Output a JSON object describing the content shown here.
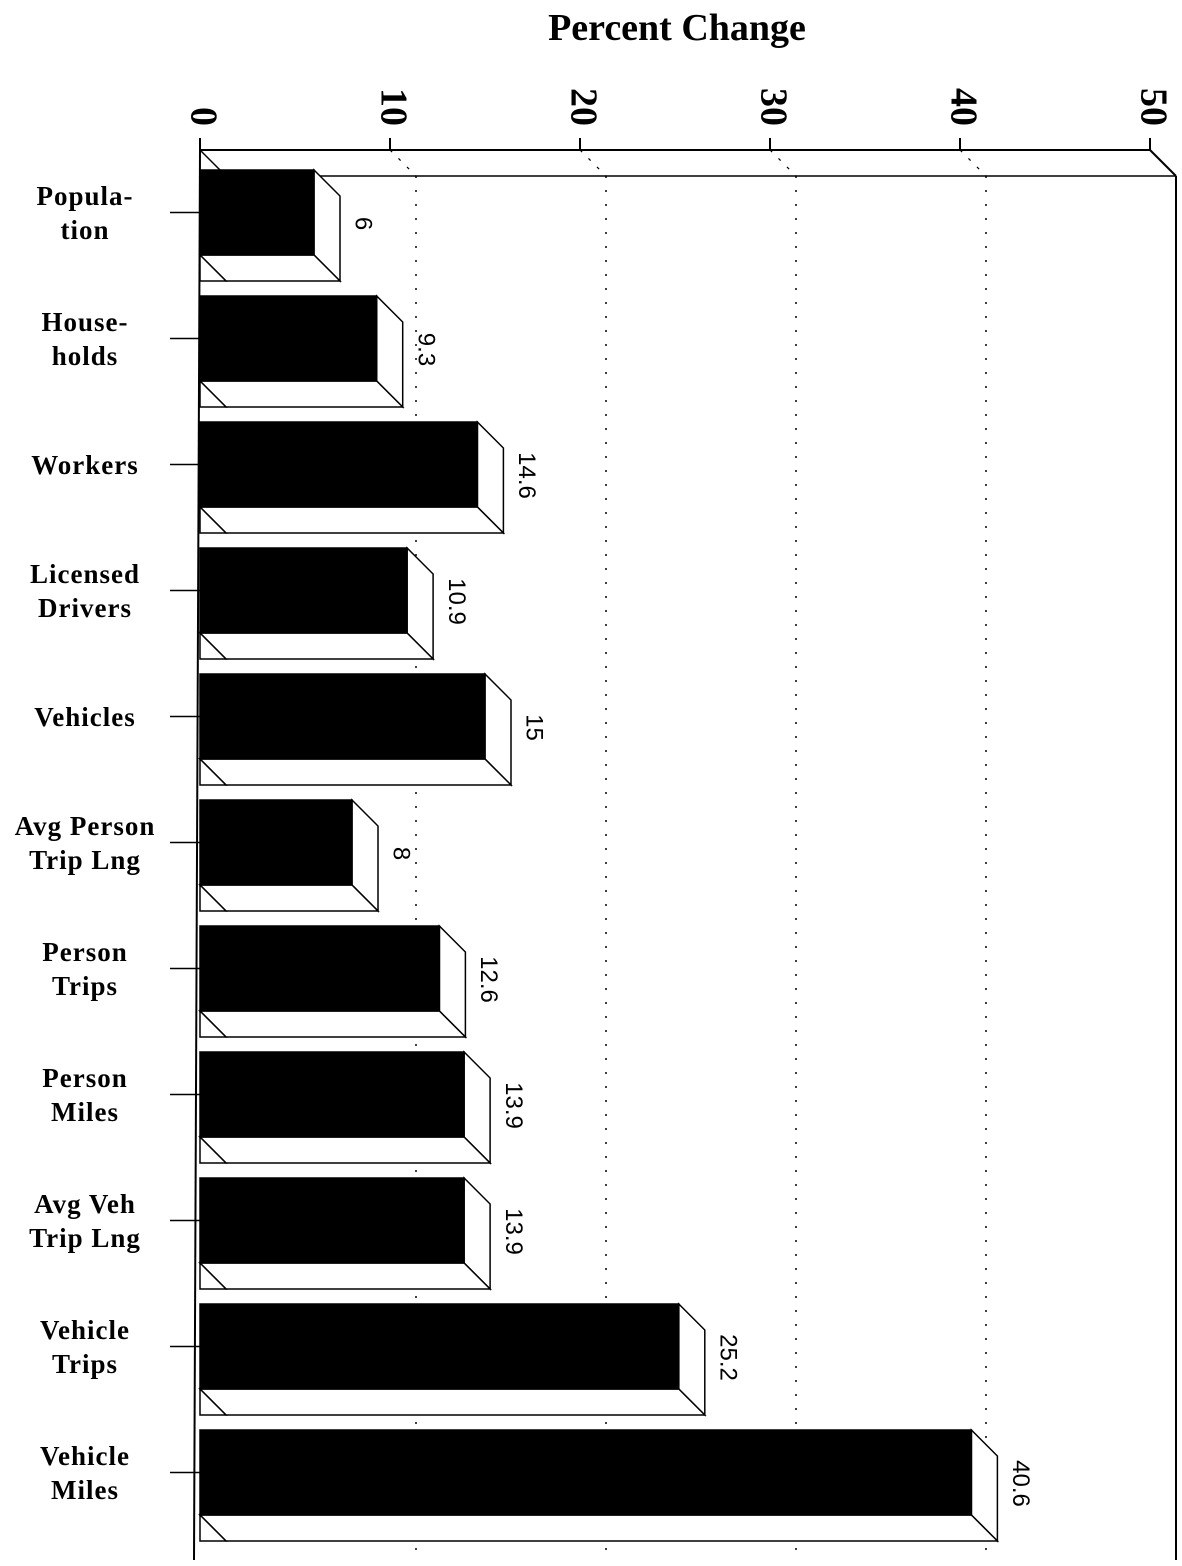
{
  "chart_data": {
    "type": "bar",
    "orientation": "horizontal",
    "x_label": "Percent Change",
    "categories": [
      "Popula-\ntion",
      "House-\nholds",
      "Workers",
      "Licensed\nDrivers",
      "Vehicles",
      "Avg Person\nTrip Lng",
      "Person\nTrips",
      "Person\nMiles",
      "Avg Veh\nTrip Lng",
      "Vehicle\nTrips",
      "Vehicle\nMiles"
    ],
    "values": [
      6,
      9.3,
      14.6,
      10.9,
      15,
      8,
      12.6,
      13.9,
      13.9,
      25.2,
      40.6
    ],
    "color": "#000000",
    "xlim": [
      0,
      50
    ],
    "xticks": [
      0,
      10,
      20,
      30,
      40,
      50
    ],
    "grid": true
  }
}
